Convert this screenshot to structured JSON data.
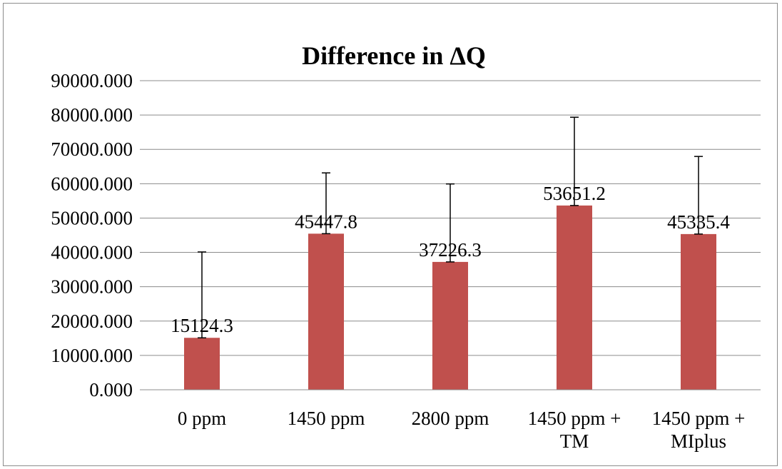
{
  "chart_data": {
    "type": "bar",
    "title": "Difference in ΔQ",
    "xlabel": "",
    "ylabel": "",
    "ylim": [
      0,
      90000
    ],
    "ytick_step": 10000,
    "ytick_labels": [
      "0.000",
      "10000.000",
      "20000.000",
      "30000.000",
      "40000.000",
      "50000.000",
      "60000.000",
      "70000.000",
      "80000.000",
      "90000.000"
    ],
    "grid": true,
    "legend": "none",
    "categories": [
      [
        "0 ppm"
      ],
      [
        "1450 ppm"
      ],
      [
        "2800 ppm"
      ],
      [
        "1450 ppm +",
        "TM"
      ],
      [
        "1450 ppm +",
        "MIplus"
      ]
    ],
    "values": [
      15124.3,
      45447.8,
      37226.3,
      53651.2,
      45335.4
    ],
    "data_labels": [
      "15124.3",
      "45447.8",
      "37226.3",
      "53651.2",
      "45335.4"
    ],
    "error_plus": [
      25000,
      17700,
      22700,
      25700,
      22600
    ],
    "bar_color": "#c0504d",
    "grid_color": "#8c8c8c"
  }
}
